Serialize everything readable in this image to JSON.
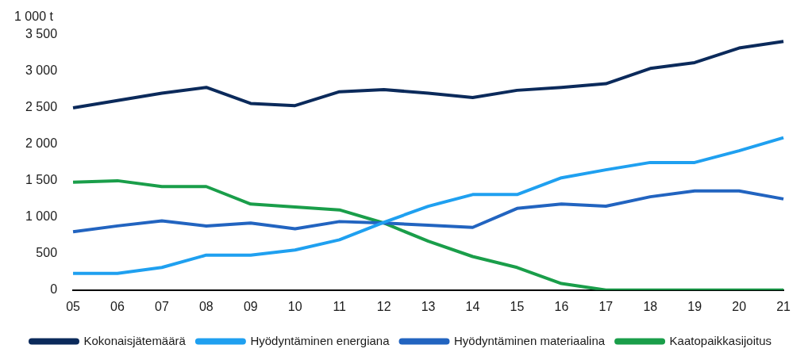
{
  "chart_data": {
    "type": "line",
    "ylabel": "1 000 t",
    "categories": [
      "05",
      "06",
      "07",
      "08",
      "09",
      "10",
      "11",
      "12",
      "13",
      "14",
      "15",
      "16",
      "17",
      "18",
      "19",
      "20",
      "21"
    ],
    "series": [
      {
        "name": "Kokonaisjätemäärä",
        "color": "#0b2a5b",
        "values": [
          2500,
          2600,
          2700,
          2780,
          2560,
          2530,
          2720,
          2750,
          2700,
          2640,
          2740,
          2780,
          2830,
          3040,
          3120,
          3320,
          3410
        ]
      },
      {
        "name": "Hyödyntäminen energiana",
        "color": "#1fa0f0",
        "values": [
          230,
          230,
          310,
          480,
          480,
          550,
          690,
          930,
          1150,
          1310,
          1310,
          1540,
          1650,
          1750,
          1750,
          1910,
          2090
        ]
      },
      {
        "name": "Hyödyntäminen materiaalina",
        "color": "#2264c0",
        "values": [
          800,
          880,
          950,
          880,
          920,
          840,
          940,
          920,
          890,
          860,
          1120,
          1180,
          1150,
          1280,
          1360,
          1360,
          1250
        ]
      },
      {
        "name": "Kaatopaikkasijoitus",
        "color": "#1a9e4a",
        "values": [
          1480,
          1500,
          1420,
          1420,
          1180,
          1140,
          1100,
          920,
          670,
          460,
          310,
          90,
          0,
          0,
          0,
          0,
          0
        ]
      }
    ],
    "ylim": [
      0,
      3500
    ],
    "yticks": [
      0,
      {
        "value": 500,
        "label": "500"
      },
      {
        "value": 1000,
        "label": "1 000"
      },
      {
        "value": 1500,
        "label": "1 500"
      },
      {
        "value": 2000,
        "label": "2 000"
      },
      {
        "value": 2500,
        "label": "2 500"
      },
      {
        "value": 3000,
        "label": "3 000"
      },
      {
        "value": 3500,
        "label": "3 500"
      }
    ],
    "grid": false,
    "legend": "bottom",
    "marker": "none",
    "line_style": "solid"
  }
}
